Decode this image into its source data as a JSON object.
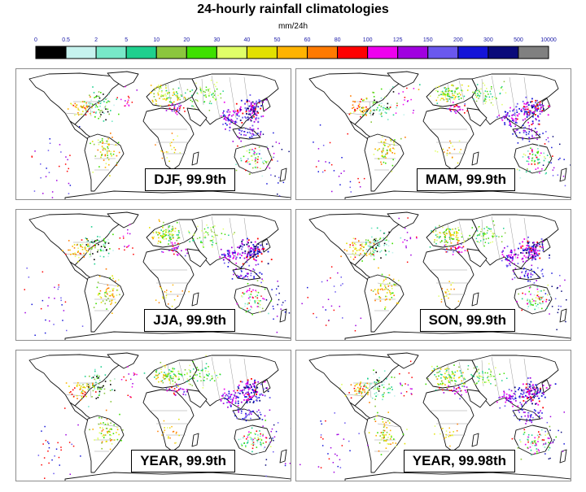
{
  "title": "24-hourly rainfall climatologies",
  "unit": "mm/24h",
  "legend": {
    "tick_labels": [
      "0",
      "0.5",
      "2",
      "5",
      "10",
      "20",
      "30",
      "40",
      "50",
      "60",
      "80",
      "100",
      "125",
      "150",
      "200",
      "300",
      "500",
      "10000"
    ],
    "colors": [
      "#000000",
      "#c6f3ee",
      "#78e8c8",
      "#1fd08e",
      "#8bc63e",
      "#3fe000",
      "#e0ff68",
      "#e2e000",
      "#ffb300",
      "#ff7a00",
      "#ff0000",
      "#ee00ee",
      "#a000e0",
      "#6a58ee",
      "#1414d8",
      "#0a0a7a",
      "#808080"
    ]
  },
  "panels": [
    {
      "label": "DJF, 99.9th"
    },
    {
      "label": "MAM, 99.9th"
    },
    {
      "label": "JJA, 99.9th"
    },
    {
      "label": "SON, 99.9th"
    },
    {
      "label": "YEAR, 99.9th"
    },
    {
      "label": "YEAR, 99.98th"
    }
  ]
}
